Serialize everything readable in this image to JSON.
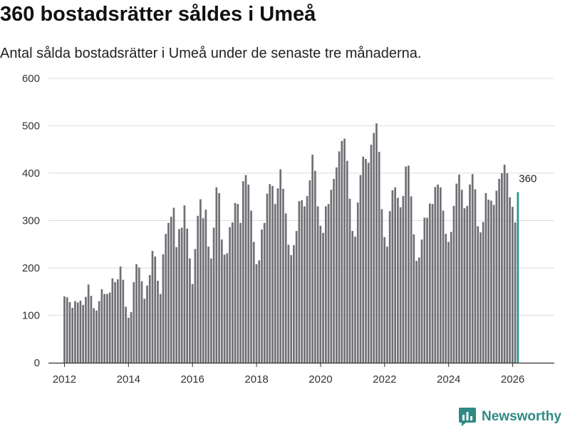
{
  "title": "360 bostadsrätter såldes i Umeå",
  "subtitle": "Antal sålda bostadsrätter i Umeå under de senaste tre månaderna.",
  "brand": {
    "name": "Newsworthy",
    "icon": "newsworthy-logo-icon"
  },
  "colors": {
    "bar": "#6f6f75",
    "highlight": "#1f9a8f",
    "grid": "#dddddd",
    "axis": "#333333",
    "brand": "#2f8a85"
  },
  "chart_data": {
    "type": "bar",
    "title": "360 bostadsrätter såldes i Umeå",
    "subtitle": "Antal sålda bostadsrätter i Umeå under de senaste tre månaderna.",
    "xlabel": "",
    "ylabel": "",
    "ylim": [
      0,
      600
    ],
    "yticks": [
      0,
      100,
      200,
      300,
      400,
      500,
      600
    ],
    "xticks": [
      2012,
      2014,
      2016,
      2018,
      2020,
      2022,
      2024,
      2026
    ],
    "xlim": [
      2011.5,
      2027.3
    ],
    "start": 2012.0,
    "step": 0.0833,
    "grid": true,
    "annotation": {
      "text": "360",
      "value": 360
    },
    "values": [
      140,
      138,
      128,
      116,
      130,
      127,
      131,
      122,
      139,
      165,
      141,
      115,
      110,
      130,
      155,
      145,
      145,
      148,
      178,
      170,
      176,
      203,
      175,
      118,
      95,
      107,
      170,
      208,
      201,
      172,
      135,
      163,
      185,
      236,
      224,
      173,
      145,
      229,
      272,
      295,
      308,
      327,
      244,
      282,
      285,
      332,
      283,
      220,
      166,
      240,
      310,
      345,
      305,
      323,
      245,
      220,
      285,
      370,
      358,
      260,
      228,
      231,
      286,
      296,
      337,
      335,
      295,
      383,
      396,
      376,
      321,
      255,
      208,
      216,
      281,
      295,
      357,
      377,
      373,
      335,
      368,
      408,
      367,
      315,
      249,
      227,
      248,
      278,
      341,
      343,
      330,
      352,
      385,
      439,
      405,
      330,
      289,
      274,
      330,
      335,
      365,
      388,
      412,
      446,
      468,
      473,
      426,
      346,
      278,
      266,
      338,
      396,
      435,
      430,
      422,
      460,
      485,
      505,
      445,
      324,
      265,
      245,
      320,
      364,
      370,
      348,
      328,
      352,
      414,
      416,
      351,
      271,
      215,
      222,
      260,
      306,
      306,
      336,
      335,
      371,
      376,
      370,
      321,
      272,
      255,
      276,
      331,
      378,
      397,
      365,
      326,
      331,
      376,
      398,
      366,
      288,
      275,
      297,
      358,
      344,
      342,
      333,
      363,
      388,
      400,
      418,
      400,
      349,
      329,
      296,
      360
    ]
  }
}
